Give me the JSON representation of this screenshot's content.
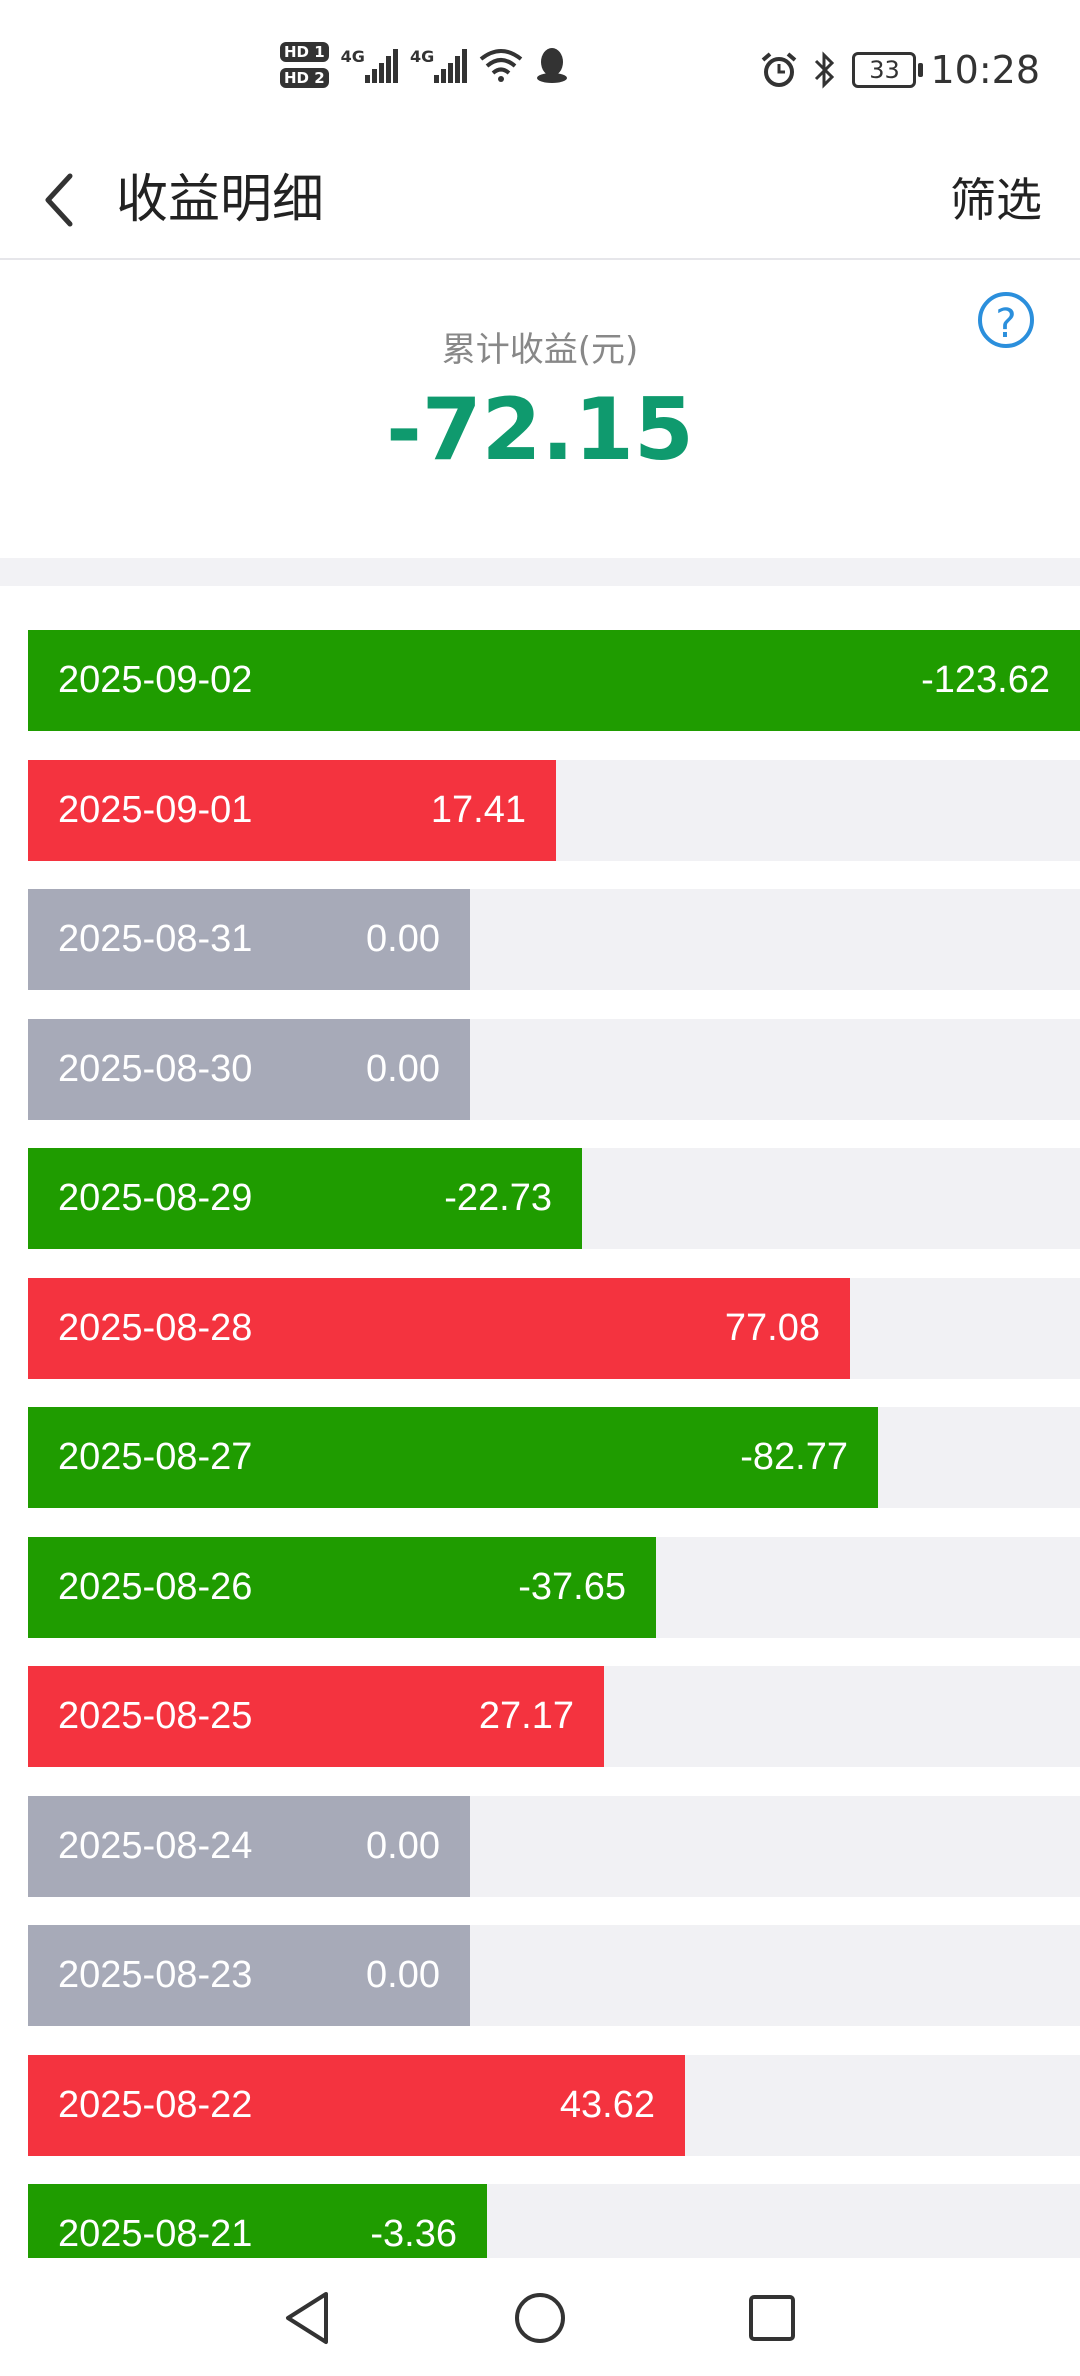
{
  "status_bar": {
    "time": "10:28",
    "battery": "33",
    "icons": [
      "hd1-icon",
      "hd2-icon",
      "signal-4g-icon",
      "signal-4g-icon",
      "wifi-icon",
      "qq-icon",
      "alarm-icon",
      "bluetooth-icon",
      "battery-icon"
    ]
  },
  "header": {
    "title": "收益明细",
    "filter_label": "筛选"
  },
  "summary": {
    "label": "累计收益(元)",
    "value": "-72.15"
  },
  "colors": {
    "negative": "#1f9c00",
    "positive": "#f4333f",
    "zero": "#a7aab8",
    "summary_value": "#0f9a6e",
    "help_icon": "#2b8fdc"
  },
  "earnings": [
    {
      "date": "2025-09-02",
      "amount": "-123.62",
      "value": -123.62
    },
    {
      "date": "2025-09-01",
      "amount": "17.41",
      "value": 17.41
    },
    {
      "date": "2025-08-31",
      "amount": "0.00",
      "value": 0
    },
    {
      "date": "2025-08-30",
      "amount": "0.00",
      "value": 0
    },
    {
      "date": "2025-08-29",
      "amount": "-22.73",
      "value": -22.73
    },
    {
      "date": "2025-08-28",
      "amount": "77.08",
      "value": 77.08
    },
    {
      "date": "2025-08-27",
      "amount": "-82.77",
      "value": -82.77
    },
    {
      "date": "2025-08-26",
      "amount": "-37.65",
      "value": -37.65
    },
    {
      "date": "2025-08-25",
      "amount": "27.17",
      "value": 27.17
    },
    {
      "date": "2025-08-24",
      "amount": "0.00",
      "value": 0
    },
    {
      "date": "2025-08-23",
      "amount": "0.00",
      "value": 0
    },
    {
      "date": "2025-08-22",
      "amount": "43.62",
      "value": 43.62
    },
    {
      "date": "2025-08-21",
      "amount": "-3.36",
      "value": -3.36
    }
  ]
}
